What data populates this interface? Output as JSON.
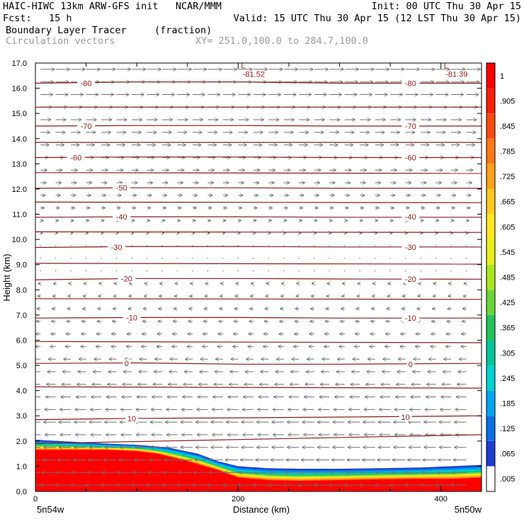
{
  "header": {
    "line1_left": "HAIC-HIWC 13km ARW-GFS init   NCAR/MMM",
    "line1_right": "Init: 00 UTC Thu 30 Apr 15",
    "line2_left": "Fcst:   15 h",
    "line2_right": "Valid: 15 UTC Thu 30 Apr 15 (12 LST Thu 30 Apr 15)",
    "line3_left": "Boundary Layer Tracer",
    "line3_units": "(fraction)",
    "line4_left": "Circulation vectors",
    "line4_right": "XY= 251.0,100.0 to 284.7,100.0"
  },
  "colors": {
    "contour": "#8b1a1a",
    "vector": "#6e6e6e",
    "tracer_max": "#ff0000"
  },
  "chart_data": {
    "type": "heatmap",
    "xlabel": "Distance (km)",
    "ylabel": "Height (km)",
    "xlim": [
      0,
      440
    ],
    "ylim": [
      0,
      17
    ],
    "x_ticks": [
      0,
      200,
      400
    ],
    "x_tick_labels": [
      "0",
      "200",
      "400"
    ],
    "x_end_labels": [
      "5n54w",
      "5n50w"
    ],
    "y_ticks": [
      0,
      1,
      2,
      3,
      4,
      5,
      6,
      7,
      8,
      9,
      10,
      11,
      12,
      13,
      14,
      15,
      16,
      17
    ],
    "y_tick_labels": [
      "0.0",
      "1.0",
      "2.0",
      "3.0",
      "4.0",
      "5.0",
      "6.0",
      "7.0",
      "8.0",
      "9.0",
      "10.0",
      "11.0",
      "12.0",
      "13.0",
      "14.0",
      "15.0",
      "16.0",
      "17.0"
    ],
    "colorbar": {
      "levels": [
        ".005",
        ".065",
        ".125",
        ".185",
        ".245",
        ".305",
        ".365",
        ".425",
        ".485",
        ".545",
        ".605",
        ".665",
        ".725",
        ".785",
        ".845",
        ".905",
        "1"
      ],
      "colors": [
        "#ffffff",
        "#1e3ccf",
        "#0b6fe6",
        "#00a5f0",
        "#00d2d2",
        "#00c896",
        "#22c45a",
        "#6ad63a",
        "#a8e61e",
        "#e6f01a",
        "#ffe61e",
        "#ffc81a",
        "#ffa01a",
        "#ff7814",
        "#ff4a0f",
        "#ff1e0a",
        "#ff0000"
      ]
    },
    "temperature_contours": {
      "units": "deg C",
      "levels": [
        {
          "label": "10",
          "x": [
            0,
            100,
            200,
            300,
            440
          ],
          "y": [
            2.85,
            2.9,
            2.92,
            2.95,
            3.0
          ]
        },
        {
          "label": "0",
          "x": [
            0,
            100,
            200,
            300,
            440
          ],
          "y": [
            5.08,
            5.1,
            5.05,
            5.05,
            5.08
          ]
        },
        {
          "label": "-10",
          "x": [
            0,
            100,
            200,
            300,
            440
          ],
          "y": [
            6.88,
            6.9,
            6.9,
            6.88,
            6.88
          ]
        },
        {
          "label": "-20",
          "x": [
            0,
            100,
            200,
            300,
            440
          ],
          "y": [
            8.4,
            8.45,
            8.45,
            8.43,
            8.42
          ]
        },
        {
          "label": "-30",
          "x": [
            0,
            100,
            200,
            300,
            440
          ],
          "y": [
            9.68,
            9.72,
            9.72,
            9.7,
            9.7
          ]
        },
        {
          "label": "-40",
          "x": [
            0,
            100,
            200,
            300,
            440
          ],
          "y": [
            10.88,
            10.9,
            10.9,
            10.88,
            10.88
          ]
        },
        {
          "label": "-50",
          "x": [
            0,
            100,
            200,
            300,
            440
          ],
          "y": [
            12.03,
            12.05,
            12.05,
            12.03,
            12.03
          ]
        },
        {
          "label": "-60",
          "x": [
            0,
            100,
            200,
            300,
            440
          ],
          "y": [
            13.25,
            13.27,
            13.27,
            13.25,
            13.25
          ]
        },
        {
          "label": "-70",
          "x": [
            0,
            100,
            200,
            300,
            440
          ],
          "y": [
            14.5,
            14.52,
            14.52,
            14.5,
            14.5
          ]
        },
        {
          "label": "-80",
          "x": [
            0,
            100,
            200,
            300,
            440
          ],
          "y": [
            16.2,
            16.25,
            16.25,
            16.2,
            16.2
          ]
        }
      ],
      "extra_lines": [
        {
          "x": [
            0,
            440
          ],
          "y": [
            1.9,
            2.25
          ]
        },
        {
          "x": [
            0,
            440
          ],
          "y": [
            4.15,
            4.1
          ]
        },
        {
          "x": [
            0,
            440
          ],
          "y": [
            5.95,
            5.9
          ]
        },
        {
          "x": [
            0,
            440
          ],
          "y": [
            7.65,
            7.62
          ]
        },
        {
          "x": [
            0,
            440
          ],
          "y": [
            9.05,
            9.02
          ]
        },
        {
          "x": [
            0,
            440
          ],
          "y": [
            10.3,
            10.28
          ]
        },
        {
          "x": [
            0,
            440
          ],
          "y": [
            11.48,
            11.46
          ]
        },
        {
          "x": [
            0,
            440
          ],
          "y": [
            12.65,
            12.62
          ]
        },
        {
          "x": [
            0,
            440
          ],
          "y": [
            13.85,
            13.85
          ]
        },
        {
          "x": [
            0,
            440
          ],
          "y": [
            15.25,
            15.25
          ]
        }
      ],
      "label_positions": [
        {
          "label": "-80",
          "x": 50,
          "y": 16.2
        },
        {
          "label": "-80",
          "x": 370,
          "y": 16.2
        },
        {
          "label": "-70",
          "x": 50,
          "y": 14.5
        },
        {
          "label": "-70",
          "x": 370,
          "y": 14.5
        },
        {
          "label": "-60",
          "x": 40,
          "y": 13.25
        },
        {
          "label": "-60",
          "x": 370,
          "y": 13.25
        },
        {
          "label": "-50",
          "x": 85,
          "y": 12.05
        },
        {
          "label": "-40",
          "x": 85,
          "y": 10.9
        },
        {
          "label": "-40",
          "x": 370,
          "y": 10.9
        },
        {
          "label": "-30",
          "x": 80,
          "y": 9.7
        },
        {
          "label": "-30",
          "x": 370,
          "y": 9.7
        },
        {
          "label": "-20",
          "x": 90,
          "y": 8.45
        },
        {
          "label": "-20",
          "x": 370,
          "y": 8.43
        },
        {
          "label": "-10",
          "x": 95,
          "y": 6.9
        },
        {
          "label": "-10",
          "x": 370,
          "y": 6.88
        },
        {
          "label": "0",
          "x": 90,
          "y": 5.08
        },
        {
          "label": "0",
          "x": 370,
          "y": 5.05
        },
        {
          "label": "10",
          "x": 95,
          "y": 2.9
        },
        {
          "label": "10",
          "x": 365,
          "y": 2.95
        }
      ]
    },
    "minima": [
      {
        "label": "L",
        "value": "-81.52",
        "x": 200,
        "y": 16.9
      },
      {
        "label": "L",
        "value": "-81.39",
        "x": 400,
        "y": 16.9
      }
    ],
    "tracer_top_km": {
      "x": [
        0,
        70,
        100,
        130,
        160,
        180,
        200,
        230,
        260,
        300,
        340,
        380,
        410,
        440
      ],
      "y": [
        2.05,
        1.9,
        1.85,
        1.75,
        1.5,
        1.2,
        1.0,
        0.92,
        0.9,
        0.9,
        0.92,
        0.95,
        1.0,
        1.05
      ]
    },
    "tracer_red_top_km": {
      "x": [
        0,
        70,
        100,
        120,
        150,
        180,
        200,
        230,
        260,
        300,
        340,
        380,
        410,
        440
      ],
      "y": [
        1.65,
        1.65,
        1.6,
        1.5,
        1.2,
        0.85,
        0.55,
        0.45,
        0.42,
        0.45,
        0.48,
        0.5,
        0.5,
        0.55
      ]
    },
    "vectors": {
      "x_spacing_km": 15,
      "z_spacing_km": 0.5,
      "flow": "easterly near surface (leftward), westerly aloft (rightward)"
    }
  }
}
